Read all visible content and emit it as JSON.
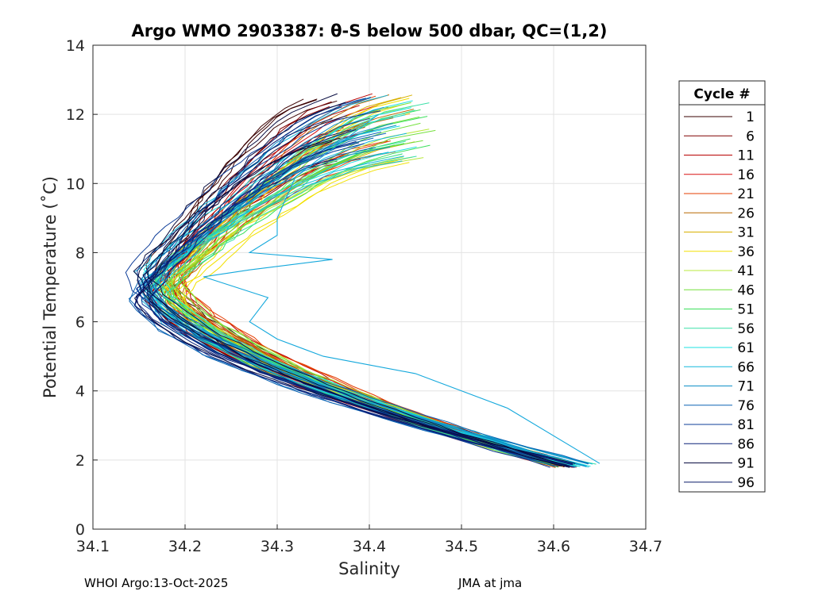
{
  "chart_data": {
    "type": "line",
    "title": "Argo WMO 2903387: θ-S below 500 dbar,  QC=(1,2)",
    "xlabel": "Salinity",
    "ylabel": "Potential Temperature (˚C)",
    "xlim": [
      34.1,
      34.7
    ],
    "ylim": [
      0,
      14
    ],
    "xticks": [
      "34.1",
      "34.2",
      "34.3",
      "34.4",
      "34.5",
      "34.6",
      "34.7"
    ],
    "yticks": [
      "0",
      "2",
      "4",
      "6",
      "8",
      "10",
      "12",
      "14"
    ],
    "grid": true,
    "legend": {
      "title": "Cycle #",
      "placement": "right",
      "entries": [
        {
          "label": "1",
          "color": "#3a0000"
        },
        {
          "label": "6",
          "color": "#800000"
        },
        {
          "label": "11",
          "color": "#b80000"
        },
        {
          "label": "16",
          "color": "#d81010"
        },
        {
          "label": "21",
          "color": "#e43c00"
        },
        {
          "label": "26",
          "color": "#b86800"
        },
        {
          "label": "31",
          "color": "#d8b000"
        },
        {
          "label": "36",
          "color": "#f2e000"
        },
        {
          "label": "41",
          "color": "#b8e83c"
        },
        {
          "label": "46",
          "color": "#74e03c"
        },
        {
          "label": "51",
          "color": "#3ce05c"
        },
        {
          "label": "56",
          "color": "#3ce0a8"
        },
        {
          "label": "61",
          "color": "#1ce0e0"
        },
        {
          "label": "66",
          "color": "#14b8dc"
        },
        {
          "label": "71",
          "color": "#1090c8"
        },
        {
          "label": "76",
          "color": "#0c64b4"
        },
        {
          "label": "81",
          "color": "#0c3c98"
        },
        {
          "label": "86",
          "color": "#0a2078"
        },
        {
          "label": "91",
          "color": "#080c40"
        },
        {
          "label": "96",
          "color": "#0a1c68"
        }
      ]
    },
    "series_envelope": {
      "description": "Each cycle traces a theta-S curve: warm saline top, salinity minimum near 7°C, deep water near 2°C",
      "upper_limb": [
        [
          34.35,
          12.0
        ],
        [
          34.27,
          10.5
        ],
        [
          34.21,
          9.0
        ],
        [
          34.165,
          7.8
        ],
        [
          34.155,
          7.0
        ]
      ],
      "lower_limb": [
        [
          34.155,
          7.0
        ],
        [
          34.17,
          6.0
        ],
        [
          34.21,
          5.2
        ],
        [
          34.3,
          4.5
        ],
        [
          34.4,
          3.8
        ],
        [
          34.5,
          3.0
        ],
        [
          34.62,
          1.8
        ]
      ],
      "anomalous_cycles": [
        {
          "name": "66-71",
          "points": [
            [
              34.41,
              12.0
            ],
            [
              34.32,
              10.2
            ],
            [
              34.3,
              9.0
            ],
            [
              34.3,
              8.5
            ],
            [
              34.27,
              8.0
            ],
            [
              34.36,
              7.8
            ],
            [
              34.27,
              7.5
            ],
            [
              34.22,
              7.3
            ],
            [
              34.29,
              6.7
            ],
            [
              34.27,
              6.0
            ],
            [
              34.3,
              5.5
            ],
            [
              34.35,
              5.0
            ],
            [
              34.45,
              4.5
            ],
            [
              34.55,
              3.5
            ],
            [
              34.65,
              1.9
            ]
          ]
        }
      ]
    }
  },
  "footer": {
    "left": "WHOI Argo:13-Oct-2025",
    "right": "JMA at jma"
  }
}
